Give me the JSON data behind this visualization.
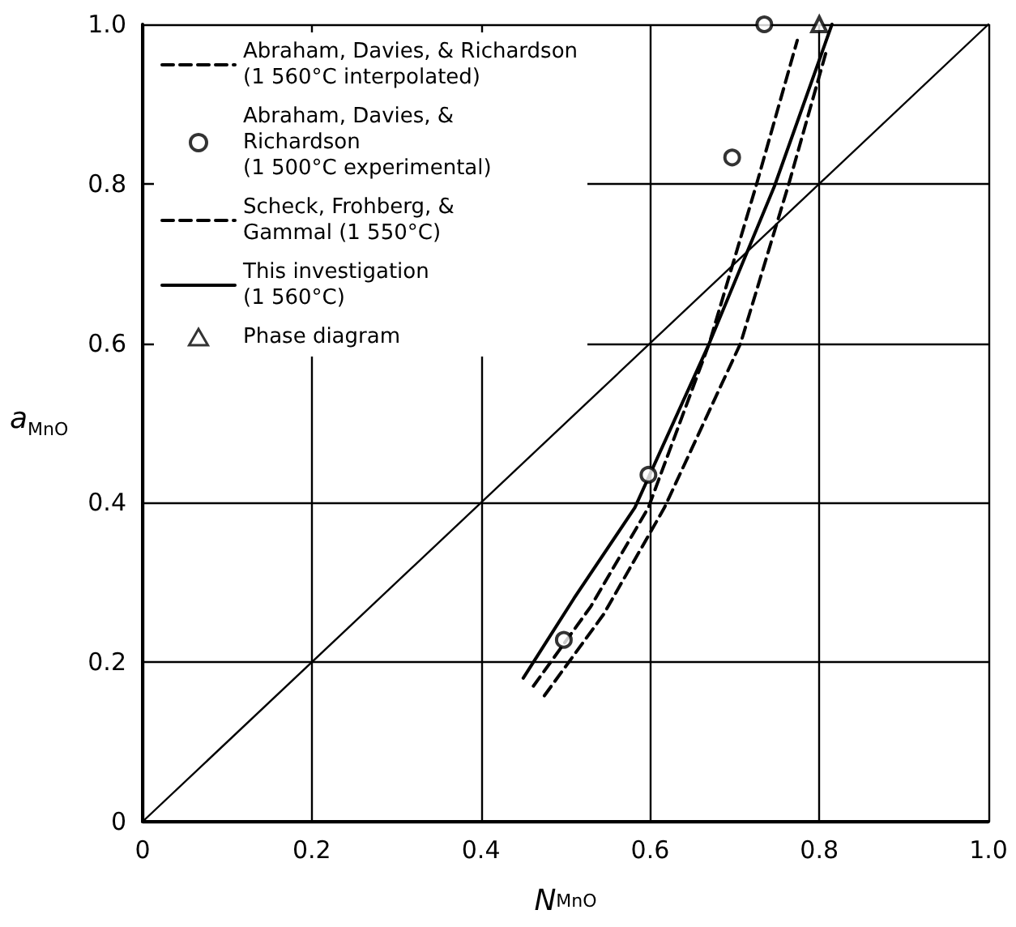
{
  "chart_data": {
    "type": "line",
    "xlabel": "N$_{MnO}$",
    "ylabel": "a$_{MnO}$",
    "xlim": [
      0,
      1
    ],
    "ylim": [
      0,
      1
    ],
    "xticks": [
      0,
      0.2,
      0.4,
      0.6,
      0.8,
      {
        "value": 1,
        "label": "1.0"
      }
    ],
    "yticks": [
      0,
      0.2,
      0.4,
      0.6,
      0.8,
      {
        "value": 1,
        "label": "1.0"
      }
    ],
    "grid": true,
    "legend": "top left",
    "series": [
      {
        "type": "line",
        "name": "Abraham, Davies, & Richardson\n(1 560°C interpolated)",
        "color": "#000000",
        "line_style": "dashed",
        "marker": "none",
        "x": [
          0.462,
          0.53,
          0.598,
          0.67,
          0.726,
          0.774
        ],
        "values": [
          0.17,
          0.27,
          0.394,
          0.6,
          0.8,
          0.98
        ]
      },
      {
        "type": "scatter",
        "name": "Abraham, Davies, &\nRichardson\n(1 500°C experimental)",
        "color": "#000000",
        "marker": "circle",
        "x": [
          0.498,
          0.598,
          0.697,
          0.735
        ],
        "values": [
          0.228,
          0.435,
          0.833,
          1.0
        ]
      },
      {
        "type": "line",
        "name": "Scheck, Frohberg, &\nGammal (1 550°C)",
        "color": "#000000",
        "line_style": "dashed",
        "marker": "none",
        "x": [
          0.475,
          0.545,
          0.617,
          0.707,
          0.764,
          0.808
        ],
        "values": [
          0.158,
          0.26,
          0.394,
          0.6,
          0.8,
          0.965
        ]
      },
      {
        "type": "line",
        "name": "This investigation\n(1 560°C)",
        "color": "#000000",
        "line_style": "solid",
        "marker": "none",
        "x": [
          0.45,
          0.51,
          0.582,
          0.67,
          0.747,
          0.815
        ],
        "values": [
          0.18,
          0.28,
          0.394,
          0.6,
          0.797,
          1.0
        ]
      },
      {
        "type": "scatter",
        "name": "Phase diagram",
        "color": "#000000",
        "marker": "triangle",
        "x": [
          0.8
        ],
        "values": [
          1.0
        ]
      },
      {
        "type": "line",
        "color": "#000000",
        "line_style": "solid",
        "marker": "none",
        "x": [
          0,
          1
        ],
        "values": [
          0,
          1
        ]
      }
    ]
  }
}
